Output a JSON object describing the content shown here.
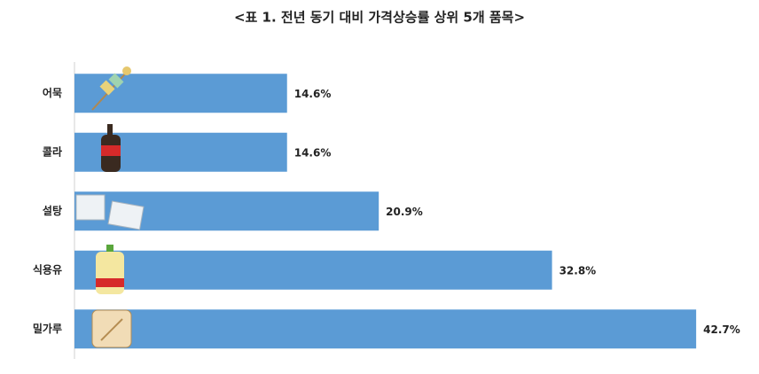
{
  "chart_data": {
    "type": "bar",
    "orientation": "horizontal",
    "title": "<표 1. 전년 동기 대비 가격상승률 상위 5개 품목>",
    "categories": [
      "어묵",
      "콜라",
      "설탕",
      "식용유",
      "밀가루"
    ],
    "values": [
      14.6,
      14.6,
      20.9,
      32.8,
      42.7
    ],
    "value_labels": [
      "14.6%",
      "14.6%",
      "20.9%",
      "32.8%",
      "42.7%"
    ],
    "color": "#5b9bd5"
  }
}
